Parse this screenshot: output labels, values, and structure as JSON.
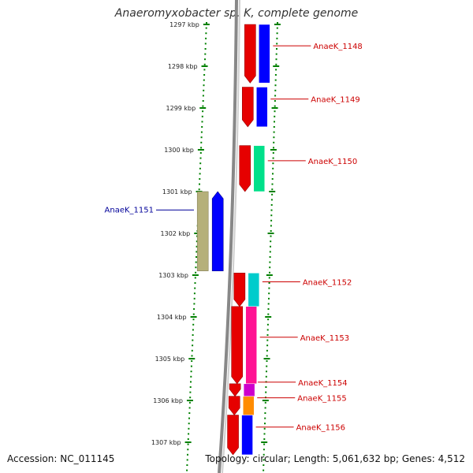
{
  "title": "Anaeromyxobacter sp. K, complete genome",
  "footer": {
    "accession": "Accession: NC_011145",
    "summary": "Topology: circular; Length: 5,061,632 bp; Genes: 4,512"
  },
  "scale": {
    "unit": "kbp",
    "ticks": [
      {
        "label": "1297 kbp",
        "value": 1297
      },
      {
        "label": "1298 kbp",
        "value": 1298
      },
      {
        "label": "1299 kbp",
        "value": 1299
      },
      {
        "label": "1300 kbp",
        "value": 1300
      },
      {
        "label": "1301 kbp",
        "value": 1301
      },
      {
        "label": "1302 kbp",
        "value": 1302
      },
      {
        "label": "1303 kbp",
        "value": 1303
      },
      {
        "label": "1304 kbp",
        "value": 1304
      },
      {
        "label": "1305 kbp",
        "value": 1305
      },
      {
        "label": "1306 kbp",
        "value": 1306
      },
      {
        "label": "1307 kbp",
        "value": 1307
      }
    ]
  },
  "colors": {
    "forward_strand": "#e60000",
    "blue_feature": "#0000ff",
    "label_forward": "#cc0000",
    "label_reverse": "#000099",
    "tick": "#008000",
    "backbone": "#888888"
  },
  "genes": [
    {
      "label": "AnaeK_1148",
      "strand": "forward",
      "start_kbp": 1297.0,
      "end_kbp": 1298.4,
      "cog_color": "#0000ff"
    },
    {
      "label": "AnaeK_1149",
      "strand": "forward",
      "start_kbp": 1298.5,
      "end_kbp": 1299.45,
      "cog_color": "#0000ff"
    },
    {
      "label": "AnaeK_1150",
      "strand": "forward",
      "start_kbp": 1299.9,
      "end_kbp": 1301.0,
      "cog_color": "#00e08a"
    },
    {
      "label": "AnaeK_1151",
      "strand": "reverse",
      "start_kbp": 1301.0,
      "end_kbp": 1302.9,
      "cog_color": "#b5b07a"
    },
    {
      "label": "AnaeK_1152",
      "strand": "forward",
      "start_kbp": 1302.95,
      "end_kbp": 1303.75,
      "cog_color": "#00cccc"
    },
    {
      "label": "AnaeK_1153",
      "strand": "forward",
      "start_kbp": 1303.75,
      "end_kbp": 1305.6,
      "cog_color": "#ff1493"
    },
    {
      "label": "AnaeK_1154",
      "strand": "forward",
      "start_kbp": 1305.6,
      "end_kbp": 1305.9,
      "cog_color": "#cc00cc"
    },
    {
      "label": "AnaeK_1155",
      "strand": "forward",
      "start_kbp": 1305.9,
      "end_kbp": 1306.35,
      "cog_color": "#ff8c00"
    },
    {
      "label": "AnaeK_1156",
      "strand": "forward",
      "start_kbp": 1306.35,
      "end_kbp": 1307.3,
      "cog_color": "#0000ff"
    }
  ]
}
